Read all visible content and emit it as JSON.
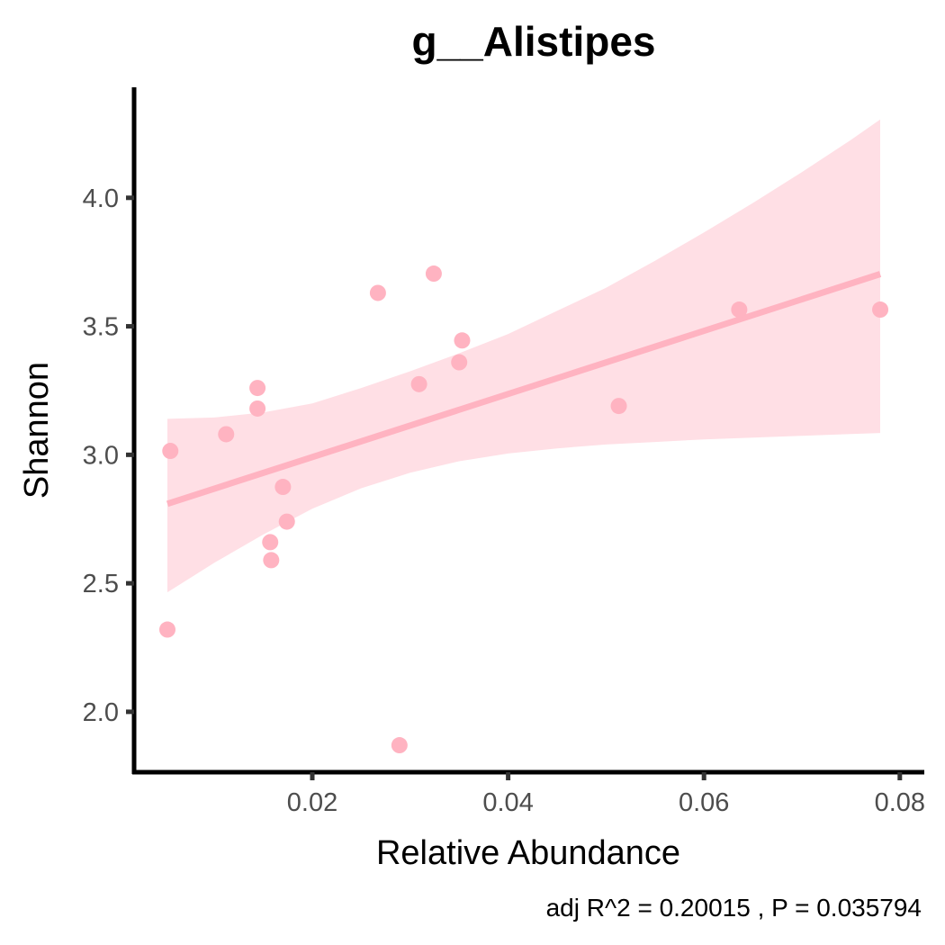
{
  "chart_data": {
    "type": "scatter",
    "title": "g__Alistipes",
    "xlabel": "Relative Abundance",
    "ylabel": "Shannon",
    "caption": "adj R^2 =  0.20015 , P = 0.035794",
    "xlim": [
      0.0018,
      0.0825
    ],
    "ylim": [
      1.765,
      4.43
    ],
    "x_ticks": [
      0.02,
      0.04,
      0.06,
      0.08
    ],
    "x_tick_labels": [
      "0.02",
      "0.04",
      "0.06",
      "0.08"
    ],
    "y_ticks": [
      2.0,
      2.5,
      3.0,
      3.5,
      4.0
    ],
    "y_tick_labels": [
      "2.0",
      "2.5",
      "3.0",
      "3.5",
      "4.0"
    ],
    "grid": false,
    "legend": "none",
    "colors": {
      "point": "#ffb3c1",
      "fit_line": "#ffb3c1",
      "ribbon": "#ffdfe5",
      "axis": "#000000",
      "tick_label": "#4d4d4d"
    },
    "points": [
      {
        "x": 0.0052,
        "y": 2.32
      },
      {
        "x": 0.0055,
        "y": 3.015
      },
      {
        "x": 0.0112,
        "y": 3.08
      },
      {
        "x": 0.0144,
        "y": 3.26
      },
      {
        "x": 0.0144,
        "y": 3.18
      },
      {
        "x": 0.0157,
        "y": 2.66
      },
      {
        "x": 0.0158,
        "y": 2.59
      },
      {
        "x": 0.017,
        "y": 2.875
      },
      {
        "x": 0.0174,
        "y": 2.74
      },
      {
        "x": 0.0267,
        "y": 3.63
      },
      {
        "x": 0.0289,
        "y": 1.87
      },
      {
        "x": 0.0309,
        "y": 3.275
      },
      {
        "x": 0.0324,
        "y": 3.705
      },
      {
        "x": 0.035,
        "y": 3.36
      },
      {
        "x": 0.0353,
        "y": 3.445
      },
      {
        "x": 0.0513,
        "y": 3.19
      },
      {
        "x": 0.0636,
        "y": 3.565
      },
      {
        "x": 0.078,
        "y": 3.565
      }
    ],
    "fit": {
      "x_start": 0.0052,
      "x_end": 0.078,
      "intercept": 2.7455,
      "slope": 12.28
    },
    "confidence_band": {
      "x": [
        0.0052,
        0.01,
        0.015,
        0.02,
        0.025,
        0.03,
        0.035,
        0.04,
        0.045,
        0.05,
        0.055,
        0.06,
        0.065,
        0.07,
        0.075,
        0.078
      ],
      "upper": [
        3.14,
        3.145,
        3.165,
        3.2,
        3.26,
        3.325,
        3.395,
        3.47,
        3.56,
        3.65,
        3.755,
        3.865,
        3.98,
        4.1,
        4.225,
        4.305
      ],
      "lower": [
        2.465,
        2.58,
        2.69,
        2.79,
        2.87,
        2.93,
        2.975,
        3.005,
        3.025,
        3.04,
        3.05,
        3.06,
        3.067,
        3.074,
        3.081,
        3.085
      ]
    }
  }
}
